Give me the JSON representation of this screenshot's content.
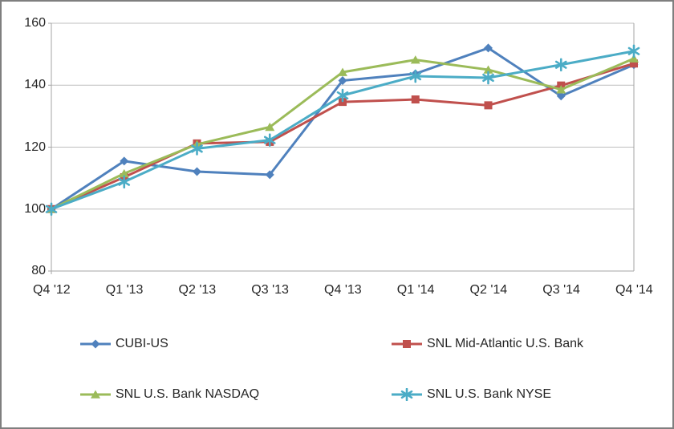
{
  "chart_data": {
    "type": "line",
    "title": "",
    "xlabel": "",
    "ylabel": "",
    "categories": [
      "Q4 '12",
      "Q1 '13",
      "Q2 '13",
      "Q3 '13",
      "Q4 '13",
      "Q1 '14",
      "Q2 '14",
      "Q3 '14",
      "Q4 '14"
    ],
    "yticks": [
      160,
      140,
      120,
      100,
      80
    ],
    "ylim": [
      80,
      160
    ],
    "grid": true,
    "legend_position": "bottom",
    "series": [
      {
        "name": "CUBI-US",
        "color": "#4F81BD",
        "marker": "diamond",
        "values": [
          100,
          115.5,
          112.1,
          111.1,
          141.5,
          143.7,
          152.0,
          136.5,
          146.6
        ]
      },
      {
        "name": "SNL Mid-Atlantic U.S. Bank",
        "color": "#C0504D",
        "marker": "square",
        "values": [
          100,
          110.3,
          121.2,
          121.7,
          134.6,
          135.4,
          133.5,
          139.9,
          147.0
        ]
      },
      {
        "name": "SNL U.S. Bank NASDAQ",
        "color": "#9BBB59",
        "marker": "triangle",
        "values": [
          100,
          111.5,
          120.9,
          126.5,
          144.2,
          148.2,
          145.0,
          138.6,
          148.6
        ]
      },
      {
        "name": "SNL U.S. Bank NYSE",
        "color": "#4BACC6",
        "marker": "asterisk",
        "values": [
          100,
          108.8,
          119.5,
          122.3,
          136.7,
          142.9,
          142.4,
          146.6,
          151.0
        ]
      }
    ],
    "axis_color": "#a6a6a6",
    "grid_color": "#bfbfbf"
  }
}
